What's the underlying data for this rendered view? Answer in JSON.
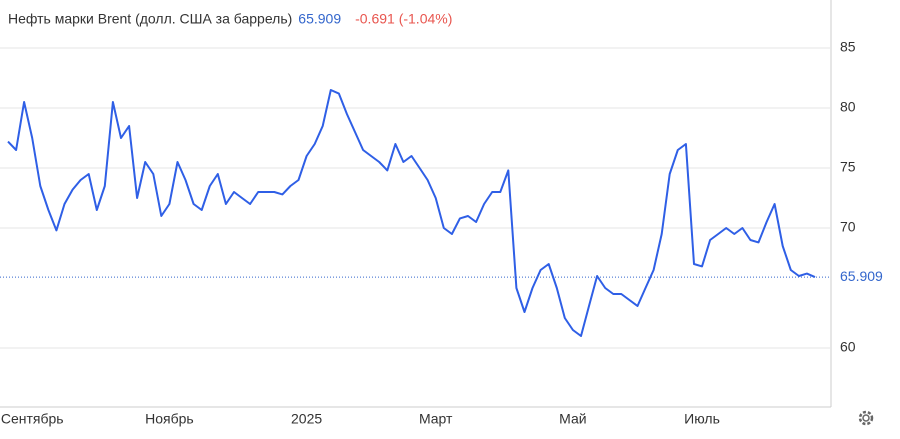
{
  "chart_data": {
    "type": "line",
    "title": "Нефть марки Brent (долл. США за баррель)",
    "price": 65.909,
    "change": "-0.691 (-1.04%)",
    "categories": [
      null,
      null,
      null,
      "Сентябрь",
      null,
      null,
      null,
      null,
      null,
      null,
      null,
      null,
      null,
      null,
      null,
      null,
      null,
      null,
      null,
      null,
      "Ноябрь",
      null,
      null,
      null,
      null,
      null,
      null,
      null,
      null,
      null,
      null,
      null,
      null,
      null,
      null,
      null,
      null,
      "2025",
      null,
      null,
      null,
      null,
      null,
      null,
      null,
      null,
      null,
      null,
      null,
      null,
      null,
      null,
      null,
      "Март",
      null,
      null,
      null,
      null,
      null,
      null,
      null,
      null,
      null,
      null,
      null,
      null,
      null,
      null,
      null,
      null,
      "Май",
      null,
      null,
      null,
      null,
      null,
      null,
      null,
      null,
      null,
      null,
      null,
      null,
      null,
      null,
      null,
      "Июль",
      null,
      null,
      null,
      null,
      null,
      null,
      null,
      null,
      null,
      null,
      null,
      null,
      null,
      null
    ],
    "series": [
      {
        "name": "Brent",
        "color": "#2f5fe6",
        "values": [
          77.2,
          76.5,
          80.5,
          77.5,
          73.5,
          71.5,
          69.8,
          72.0,
          73.2,
          74.0,
          74.5,
          71.5,
          73.5,
          80.5,
          77.5,
          78.5,
          72.5,
          75.5,
          74.5,
          71.0,
          72.0,
          75.5,
          74.0,
          72.0,
          71.5,
          73.5,
          74.5,
          72.0,
          73.0,
          72.5,
          72.0,
          73.0,
          73.0,
          73.0,
          72.8,
          73.5,
          74.0,
          76.0,
          77.0,
          78.5,
          81.5,
          81.2,
          79.5,
          78.0,
          76.5,
          76.0,
          75.5,
          74.8,
          77.0,
          75.5,
          76.0,
          75.0,
          74.0,
          72.5,
          70.0,
          69.5,
          70.8,
          71.0,
          70.5,
          72.0,
          73.0,
          73.0,
          74.8,
          65.0,
          63.0,
          65.0,
          66.5,
          67.0,
          65.0,
          62.5,
          61.5,
          61.0,
          63.5,
          66.0,
          65.0,
          64.5,
          64.5,
          64.0,
          63.5,
          65.0,
          66.5,
          69.5,
          74.5,
          76.5,
          77.0,
          67.0,
          66.8,
          69.0,
          69.5,
          70.0,
          69.5,
          70.0,
          69.0,
          68.8,
          70.5,
          72.0,
          68.5,
          66.5,
          66.0,
          66.2,
          65.909
        ]
      }
    ],
    "ylim": [
      55.25,
      89
    ],
    "yticks": [
      60,
      70,
      75,
      80,
      85
    ],
    "grid": true
  }
}
